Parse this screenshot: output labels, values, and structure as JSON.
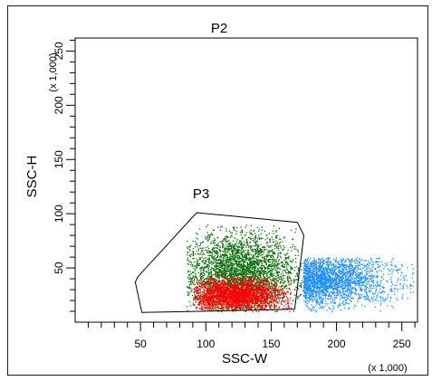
{
  "chart_data": {
    "type": "scatter",
    "title": "P2",
    "xlabel": "SSC-W",
    "ylabel": "SSC-H",
    "x_multiplier": "(x 1,000)",
    "y_multiplier": "(x 1,000)",
    "xlim": [
      0,
      262
    ],
    "ylim": [
      0,
      262
    ],
    "x_ticks": [
      50,
      100,
      150,
      200,
      250
    ],
    "y_ticks": [
      50,
      100,
      150,
      200,
      250
    ],
    "gate": {
      "name": "P3",
      "vertices": [
        [
          48,
          42
        ],
        [
          93,
          101
        ],
        [
          170,
          92
        ],
        [
          175,
          80
        ],
        [
          168,
          12
        ],
        [
          95,
          10
        ],
        [
          51,
          9
        ],
        [
          46,
          37
        ]
      ]
    },
    "series": [
      {
        "color": "#1e90ff",
        "x_range": [
          150,
          262
        ],
        "y_range": [
          10,
          60
        ],
        "density_center": [
          185,
          40
        ]
      },
      {
        "color": "#0b6e0b",
        "x_range": [
          85,
          175
        ],
        "y_range": [
          10,
          90
        ],
        "density_center": [
          125,
          45
        ]
      },
      {
        "color": "#ff0000",
        "x_range": [
          90,
          165
        ],
        "y_range": [
          12,
          45
        ],
        "density_center": [
          122,
          25
        ]
      }
    ],
    "grid": false,
    "legend": "none"
  }
}
